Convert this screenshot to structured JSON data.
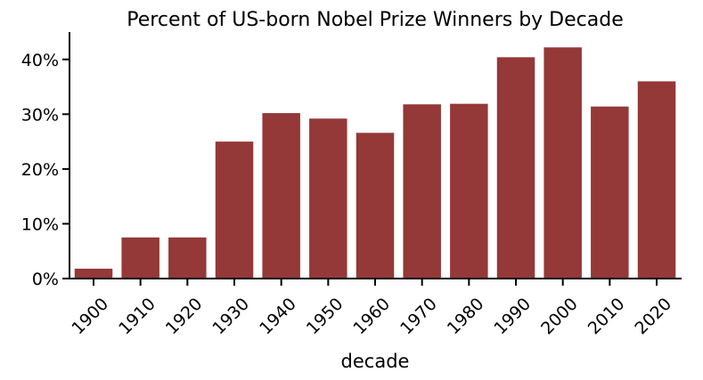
{
  "chart_data": {
    "type": "bar",
    "title": "Percent of US-born Nobel Prize Winners by Decade",
    "xlabel": "decade",
    "ylabel": "",
    "categories": [
      "1900",
      "1910",
      "1920",
      "1930",
      "1940",
      "1950",
      "1960",
      "1970",
      "1980",
      "1990",
      "2000",
      "2010",
      "2020"
    ],
    "values": [
      1.8,
      7.5,
      7.5,
      25.0,
      30.2,
      29.2,
      26.6,
      31.8,
      31.9,
      40.4,
      42.2,
      31.4,
      36.0
    ],
    "ylim": [
      0,
      45
    ],
    "yticks": [
      0,
      10,
      20,
      30,
      40
    ],
    "ytick_labels": [
      "0%",
      "10%",
      "20%",
      "30%",
      "40%"
    ],
    "bar_color": "#943838",
    "grid": false,
    "legend": "none"
  }
}
